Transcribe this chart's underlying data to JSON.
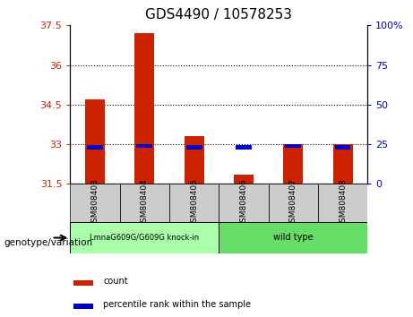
{
  "title": "GDS4490 / 10578253",
  "samples": [
    "GSM808403",
    "GSM808404",
    "GSM808405",
    "GSM808406",
    "GSM808407",
    "GSM808408"
  ],
  "count_values": [
    34.7,
    37.2,
    33.3,
    31.85,
    33.0,
    33.0
  ],
  "percentile_values": [
    23,
    24,
    23,
    23,
    24,
    23
  ],
  "ylim_left": [
    31.5,
    37.5
  ],
  "ylim_right": [
    0,
    100
  ],
  "yticks_left": [
    31.5,
    33,
    34.5,
    36,
    37.5
  ],
  "yticks_right": [
    0,
    25,
    50,
    75,
    100
  ],
  "ytick_labels_left": [
    "31.5",
    "33",
    "34.5",
    "36",
    "37.5"
  ],
  "ytick_labels_right": [
    "0",
    "25",
    "50",
    "75",
    "100%"
  ],
  "baseline": 31.5,
  "bar_color": "#cc2200",
  "percentile_color": "#0000cc",
  "dotted_lines": [
    33,
    34.5,
    36
  ],
  "group1_label": "LmnaG609G/G609G knock-in",
  "group2_label": "wild type",
  "group1_color": "#aaffaa",
  "group2_color": "#66dd66",
  "legend_count_label": "count",
  "legend_pct_label": "percentile rank within the sample",
  "bar_width": 0.4,
  "genotype_label": "genotype/variation",
  "sample_box_color": "#cccccc"
}
